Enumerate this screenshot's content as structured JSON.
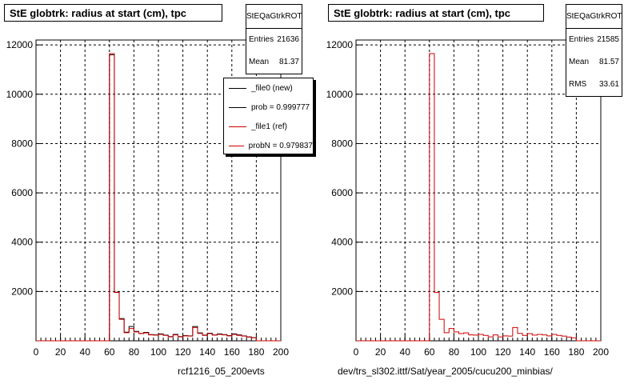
{
  "chart_data": [
    {
      "type": "histogram",
      "title": "StE globtrk: radius at start (cm), tpc",
      "x_caption": "rcf1216_05_200evts",
      "xlim": [
        0,
        200
      ],
      "ylim": [
        0,
        12200
      ],
      "x_ticks": [
        0,
        20,
        40,
        60,
        80,
        100,
        120,
        140,
        160,
        180,
        200
      ],
      "y_ticks": [
        2000,
        4000,
        6000,
        8000,
        10000,
        12000
      ],
      "grid": true,
      "bin_width": 4,
      "stats": {
        "name": "StEQaGtrkROT",
        "entries_label": "Entries",
        "entries": "21636",
        "mean_label": "Mean",
        "mean": "81.37"
      },
      "legend": {
        "position": "top-right",
        "entries": [
          {
            "label": "_file0 (new)",
            "color": "#000000"
          },
          {
            "label": "prob = 0.999777",
            "color": "#000000"
          },
          {
            "label": "_file1 (ref)",
            "color": "#cc0000"
          },
          {
            "label": "probN = 0.979837",
            "color": "#cc0000"
          }
        ]
      },
      "series": [
        {
          "name": "_file0 (new)",
          "color": "#000000",
          "x": [
            0,
            4,
            8,
            12,
            16,
            20,
            24,
            28,
            32,
            36,
            40,
            44,
            48,
            52,
            56,
            60,
            64,
            68,
            72,
            76,
            80,
            84,
            88,
            92,
            96,
            100,
            104,
            108,
            112,
            116,
            120,
            124,
            128,
            132,
            136,
            140,
            144,
            148,
            152,
            156,
            160,
            164,
            168,
            172,
            176,
            180,
            184,
            188,
            192,
            196
          ],
          "values": [
            0,
            0,
            0,
            0,
            0,
            0,
            0,
            0,
            0,
            0,
            0,
            0,
            0,
            0,
            0,
            11600,
            1970,
            900,
            350,
            580,
            380,
            300,
            340,
            250,
            240,
            280,
            230,
            170,
            260,
            170,
            210,
            200,
            580,
            320,
            230,
            310,
            240,
            280,
            250,
            210,
            280,
            240,
            200,
            160,
            130,
            0,
            0,
            0,
            0,
            0
          ]
        },
        {
          "name": "_file1 (ref)",
          "color": "#cc0000",
          "x": [
            0,
            4,
            8,
            12,
            16,
            20,
            24,
            28,
            32,
            36,
            40,
            44,
            48,
            52,
            56,
            60,
            64,
            68,
            72,
            76,
            80,
            84,
            88,
            92,
            96,
            100,
            104,
            108,
            112,
            116,
            120,
            124,
            128,
            132,
            136,
            140,
            144,
            148,
            152,
            156,
            160,
            164,
            168,
            172,
            176,
            180,
            184,
            188,
            192,
            196
          ],
          "values": [
            0,
            0,
            0,
            0,
            0,
            0,
            0,
            0,
            0,
            0,
            0,
            0,
            0,
            0,
            0,
            11650,
            1960,
            870,
            330,
            500,
            360,
            290,
            320,
            240,
            230,
            260,
            220,
            160,
            240,
            160,
            200,
            190,
            540,
            300,
            220,
            290,
            230,
            260,
            240,
            200,
            260,
            220,
            190,
            150,
            120,
            0,
            0,
            0,
            0,
            0
          ]
        }
      ]
    },
    {
      "type": "histogram",
      "title": "StE globtrk: radius at start (cm), tpc",
      "x_caption": "dev/trs_sl302.ittf/Sat/year_2005/cucu200_minbias/",
      "xlim": [
        0,
        200
      ],
      "ylim": [
        0,
        12200
      ],
      "x_ticks": [
        0,
        20,
        40,
        60,
        80,
        100,
        120,
        140,
        160,
        180,
        200
      ],
      "y_ticks": [
        2000,
        4000,
        6000,
        8000,
        10000,
        12000
      ],
      "grid": true,
      "bin_width": 4,
      "stats": {
        "name": "StEQaGtrkROT",
        "entries_label": "Entries",
        "entries": "21585",
        "mean_label": "Mean",
        "mean": "81.57",
        "rms_label": "RMS",
        "rms": "33.61"
      },
      "series": [
        {
          "name": "_file1 (ref)",
          "color": "#cc0000",
          "x": [
            0,
            4,
            8,
            12,
            16,
            20,
            24,
            28,
            32,
            36,
            40,
            44,
            48,
            52,
            56,
            60,
            64,
            68,
            72,
            76,
            80,
            84,
            88,
            92,
            96,
            100,
            104,
            108,
            112,
            116,
            120,
            124,
            128,
            132,
            136,
            140,
            144,
            148,
            152,
            156,
            160,
            164,
            168,
            172,
            176,
            180,
            184,
            188,
            192,
            196
          ],
          "values": [
            0,
            0,
            0,
            0,
            0,
            0,
            0,
            0,
            0,
            0,
            0,
            0,
            0,
            0,
            0,
            11650,
            1960,
            870,
            330,
            500,
            360,
            290,
            320,
            240,
            230,
            260,
            220,
            160,
            240,
            160,
            200,
            190,
            540,
            300,
            220,
            290,
            230,
            260,
            240,
            200,
            260,
            220,
            190,
            150,
            120,
            0,
            0,
            0,
            0,
            0
          ]
        }
      ]
    }
  ]
}
